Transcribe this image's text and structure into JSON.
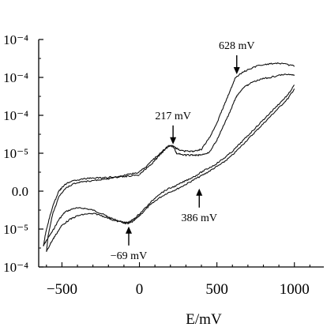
{
  "chart_data": {
    "type": "line",
    "xlabel": "E/mV",
    "x_ticks": [
      "−500",
      "0",
      "500",
      "1000"
    ],
    "x_tick_values": [
      -500,
      0,
      500,
      1000
    ],
    "xlim": [
      -650,
      1190
    ],
    "y_ticks": [
      "10⁻⁴",
      "10⁻⁴",
      "10⁻⁴",
      "10⁻⁵",
      "0.0",
      "10⁻⁵",
      "10⁻⁴"
    ],
    "y_tick_values": [
      3,
      2,
      1,
      0,
      -1,
      -2,
      -3
    ],
    "ylim": [
      -3,
      3
    ],
    "grid": false,
    "annotations": [
      {
        "label": "628 mV",
        "x": 628,
        "y": 2.0,
        "arrow": "down"
      },
      {
        "label": "217 mV",
        "x": 217,
        "y": 0.15,
        "arrow": "down"
      },
      {
        "label": "386 mV",
        "x": 386,
        "y": -0.85,
        "arrow": "up"
      },
      {
        "label": "−69 mV",
        "x": -69,
        "y": -1.85,
        "arrow": "up"
      }
    ],
    "series": [
      {
        "x": [
          -620,
          -600,
          -560,
          -520,
          -480,
          -420,
          -360,
          -300,
          -240,
          -180,
          -120,
          -90,
          -69,
          -40,
          0,
          60,
          120,
          180,
          240,
          300,
          360,
          420,
          480,
          540,
          600,
          660,
          720,
          780,
          840,
          900,
          960,
          1000
        ],
        "y": [
          -2.45,
          -2.3,
          -2.05,
          -1.75,
          -1.55,
          -1.45,
          -1.45,
          -1.5,
          -1.6,
          -1.72,
          -1.8,
          -1.85,
          -1.85,
          -1.8,
          -1.65,
          -1.4,
          -1.2,
          -1.05,
          -0.95,
          -0.82,
          -0.68,
          -0.55,
          -0.4,
          -0.25,
          -0.05,
          0.2,
          0.45,
          0.7,
          0.95,
          1.2,
          1.45,
          1.7
        ]
      },
      {
        "x": [
          1000,
          960,
          900,
          840,
          780,
          720,
          680,
          640,
          620,
          580,
          540,
          500,
          450,
          400,
          360,
          320,
          280,
          240,
          217,
          190,
          160,
          120,
          80,
          40,
          0
        ],
        "y": [
          2.05,
          2.08,
          2.05,
          2.0,
          1.95,
          1.85,
          1.75,
          1.58,
          1.45,
          1.05,
          0.7,
          0.35,
          0.02,
          -0.05,
          -0.05,
          -0.05,
          -0.05,
          0.0,
          0.18,
          0.2,
          0.1,
          -0.05,
          -0.2,
          -0.38,
          -0.48
        ]
      },
      {
        "x": [
          0,
          -60,
          -120,
          -180,
          -240,
          -300,
          -360,
          -420,
          -480,
          -520,
          -560,
          -600,
          -620
        ],
        "y": [
          -0.5,
          -0.55,
          -0.6,
          -0.63,
          -0.65,
          -0.65,
          -0.68,
          -0.72,
          -0.82,
          -1.0,
          -1.4,
          -2.0,
          -2.45
        ]
      },
      {
        "x": [
          -600,
          -570,
          -540,
          -500,
          -450,
          -400,
          -340,
          -280,
          -220,
          -160,
          -100,
          -69,
          -40,
          0,
          60,
          120,
          180,
          240,
          300,
          360,
          420,
          480,
          540,
          600,
          660,
          720,
          780,
          840,
          900,
          960,
          1000
        ],
        "y": [
          -2.6,
          -2.35,
          -2.15,
          -1.9,
          -1.75,
          -1.65,
          -1.6,
          -1.6,
          -1.68,
          -1.78,
          -1.83,
          -1.82,
          -1.75,
          -1.6,
          -1.35,
          -1.1,
          -0.95,
          -0.85,
          -0.72,
          -0.6,
          -0.45,
          -0.32,
          -0.15,
          0.05,
          0.3,
          0.55,
          0.8,
          1.05,
          1.3,
          1.55,
          1.8
        ]
      },
      {
        "x": [
          1000,
          940,
          880,
          820,
          760,
          700,
          660,
          620,
          580,
          540,
          500,
          450,
          400,
          350,
          300,
          260,
          230,
          200,
          160,
          120,
          80,
          40,
          0
        ],
        "y": [
          2.3,
          2.35,
          2.38,
          2.35,
          2.3,
          2.2,
          2.12,
          2.0,
          1.6,
          1.2,
          0.8,
          0.4,
          0.1,
          0.05,
          0.05,
          0.08,
          0.15,
          0.22,
          0.08,
          -0.1,
          -0.28,
          -0.42,
          -0.55
        ]
      },
      {
        "x": [
          0,
          -60,
          -120,
          -180,
          -240,
          -300,
          -360,
          -420,
          -470,
          -520,
          -560,
          -590,
          -600
        ],
        "y": [
          -0.58,
          -0.6,
          -0.62,
          -0.66,
          -0.7,
          -0.72,
          -0.75,
          -0.8,
          -0.9,
          -1.15,
          -1.6,
          -2.2,
          -2.6
        ]
      }
    ]
  }
}
